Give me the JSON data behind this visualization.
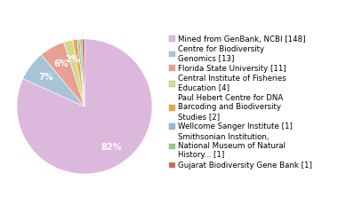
{
  "labels": [
    "Mined from GenBank, NCBI [148]",
    "Centre for Biodiversity\nGenomics [13]",
    "Florida State University [11]",
    "Central Institute of Fisheries\nEducation [4]",
    "Paul Hebert Centre for DNA\nBarcoding and Biodiversity\nStudies [2]",
    "Wellcome Sanger Institute [1]",
    "Smithsonian Institution,\nNational Museum of Natural\nHistory... [1]",
    "Gujarat Biodiversity Gene Bank [1]"
  ],
  "values": [
    148,
    13,
    11,
    4,
    2,
    1,
    1,
    1
  ],
  "colors": [
    "#ddb8dd",
    "#a8c4d8",
    "#e8a090",
    "#d4d890",
    "#e8a840",
    "#90b8d8",
    "#98c878",
    "#c86858"
  ],
  "pct_fontsize": 7,
  "legend_fontsize": 6.2,
  "background_color": "#ffffff"
}
